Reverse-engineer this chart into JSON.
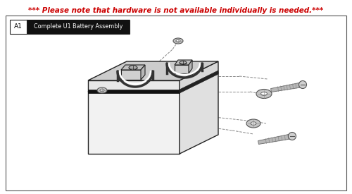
{
  "title": "*** Please note that hardware is not available individually is needed.***",
  "title_color": "#cc0000",
  "title_fontsize": 7.5,
  "label_A1": "A1",
  "label_desc": "Complete U1 Battery Assembly",
  "bg_color": "#ffffff",
  "border_color": "#555555",
  "box_border_color": "#222222",
  "label_bg": "#111111",
  "label_fg": "#ffffff",
  "battery_front_color": "#f2f2f2",
  "battery_right_color": "#e0e0e0",
  "battery_top_color": "#d5d5d5",
  "battery_edge_color": "#222222",
  "hardware_color": "#aaaaaa",
  "hardware_ec": "#555555",
  "dash_color": "#888888"
}
